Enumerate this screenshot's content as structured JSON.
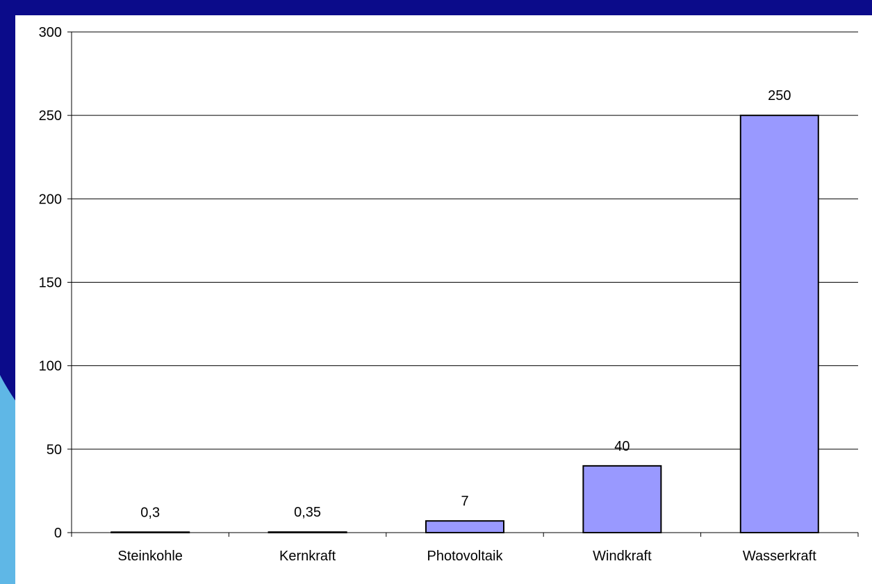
{
  "slide": {
    "frame_color": "#0b0b8a",
    "accent_color": "#5fb7e6"
  },
  "chart_data": {
    "type": "bar",
    "categories": [
      "Steinkohle",
      "Kernkraft",
      "Photovoltaik",
      "Windkraft",
      "Wasserkraft"
    ],
    "values": [
      0.3,
      0.35,
      7,
      40,
      250
    ],
    "data_labels": [
      "0,3",
      "0,35",
      "7",
      "40",
      "250"
    ],
    "title": "",
    "xlabel": "",
    "ylabel": "",
    "ylim": [
      0,
      300
    ],
    "yticks": [
      0,
      50,
      100,
      150,
      200,
      250,
      300
    ],
    "ytick_labels": [
      "0",
      "50",
      "100",
      "150",
      "200",
      "250",
      "300"
    ],
    "grid": true,
    "legend": "none",
    "bar_color": "#9999ff",
    "bar_edge_color": "#000000"
  }
}
